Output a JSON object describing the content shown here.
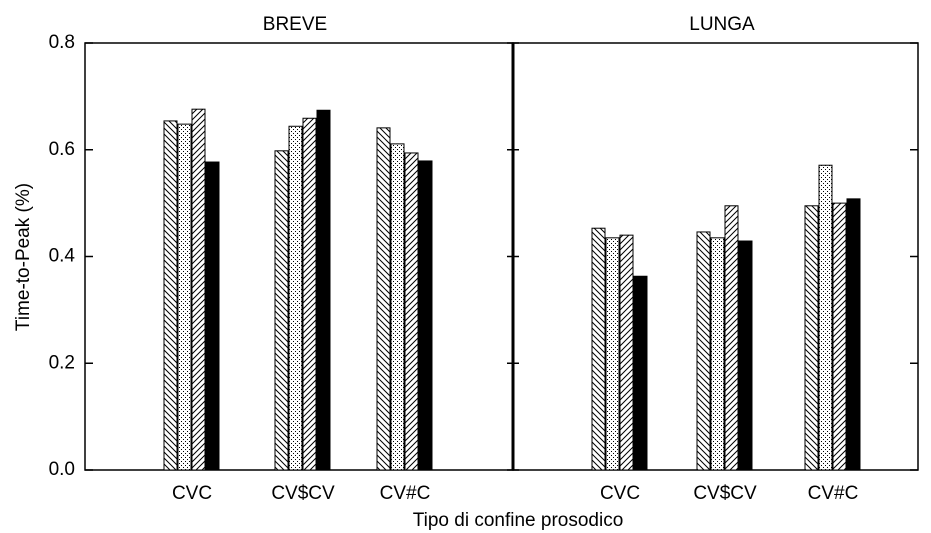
{
  "chart_data": [
    {
      "type": "bar",
      "title": "BREVE",
      "ylabel": "Time-to-Peak (%)",
      "xlabel": "Tipo di confine prosodico",
      "categories": [
        "CVC",
        "CV$CV",
        "CV#C"
      ],
      "series": [
        {
          "pattern": "backslash",
          "color": "#000000",
          "values": [
            0.654,
            0.598,
            0.641
          ]
        },
        {
          "pattern": "dots",
          "color": "#000000",
          "values": [
            0.648,
            0.644,
            0.611
          ]
        },
        {
          "pattern": "slash",
          "color": "#000000",
          "values": [
            0.676,
            0.659,
            0.594
          ]
        },
        {
          "pattern": "solid",
          "color": "#000000",
          "values": [
            0.577,
            0.674,
            0.579
          ]
        }
      ],
      "ylim": [
        0,
        0.8
      ],
      "yticks": [
        {
          "value": 0,
          "label": "0.0"
        },
        0.2,
        0.4,
        0.6,
        0.8
      ]
    },
    {
      "type": "bar",
      "title": "LUNGA",
      "categories": [
        "CVC",
        "CV$CV",
        "CV#C"
      ],
      "series": [
        {
          "pattern": "backslash",
          "color": "#000000",
          "values": [
            0.453,
            0.446,
            0.495
          ]
        },
        {
          "pattern": "dots",
          "color": "#000000",
          "values": [
            0.435,
            0.435,
            0.571
          ]
        },
        {
          "pattern": "slash",
          "color": "#000000",
          "values": [
            0.44,
            0.495,
            0.5
          ]
        },
        {
          "pattern": "solid",
          "color": "#000000",
          "values": [
            0.363,
            0.429,
            0.508
          ]
        }
      ],
      "ylim": [
        0,
        0.8
      ]
    }
  ]
}
